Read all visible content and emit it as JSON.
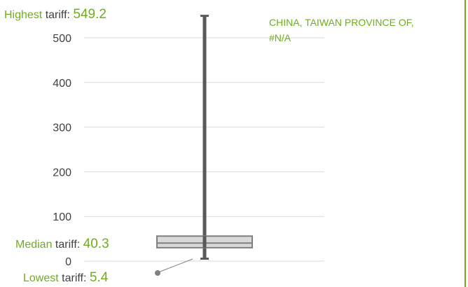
{
  "chart_data": {
    "type": "boxplot",
    "title": "",
    "xlabel": "",
    "ylabel": "",
    "ylim": [
      0,
      550
    ],
    "y_ticks": [
      0,
      100,
      200,
      300,
      400,
      500
    ],
    "grid": true,
    "series": [
      {
        "name": "",
        "min": 5.4,
        "q1": 30,
        "median": 40.3,
        "q3": 56,
        "max": 549.2
      }
    ],
    "annotations": {
      "highest": {
        "label_prefix": "Highest",
        "label_suffix": " tariff: ",
        "value": "549.2"
      },
      "median": {
        "label_prefix": "Median",
        "label_suffix": " tariff: ",
        "value": "40.3"
      },
      "lowest": {
        "label_prefix": "Lowest",
        "label_suffix": " tariff: ",
        "value": "5.4"
      }
    },
    "country_label": {
      "line1": "CHINA, TAIWAN PROVINCE OF,",
      "line2": "#N/A"
    }
  },
  "colors": {
    "accent_green": "#70ad1e",
    "label_dark": "#404040",
    "whisker": "#595959",
    "box_fill": "#d9d9d9",
    "box_stroke": "#7f7f7f",
    "grid": "#d9d9d9",
    "marker": "#7f7f7f"
  }
}
